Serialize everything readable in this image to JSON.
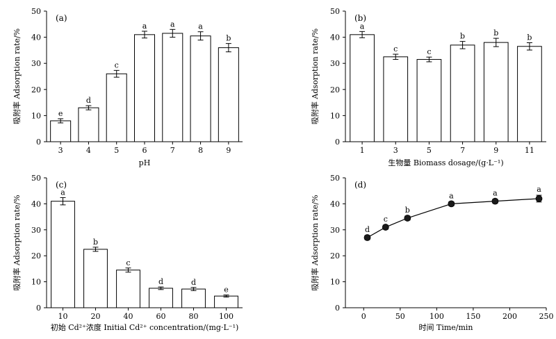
{
  "chart_data": [
    {
      "type": "bar",
      "panel_label": "(a)",
      "xlabel": "pH",
      "ylabel": "吸附率 Adsorption rate/%",
      "categories": [
        "3",
        "4",
        "5",
        "6",
        "7",
        "8",
        "9"
      ],
      "values": [
        8,
        13,
        26,
        41,
        41.5,
        40.5,
        36
      ],
      "errors": [
        0.8,
        0.8,
        1.3,
        1.3,
        1.5,
        1.6,
        1.6
      ],
      "letters": [
        "e",
        "d",
        "c",
        "a",
        "a",
        "a",
        "b"
      ],
      "ylim": [
        0,
        50
      ],
      "yticks": [
        0,
        10,
        20,
        30,
        40,
        50
      ],
      "grid": false
    },
    {
      "type": "bar",
      "panel_label": "(b)",
      "xlabel": "生物量 Biomass dosage/(g·L⁻¹)",
      "ylabel": "吸附率 Adsorption rate/%",
      "categories": [
        "1",
        "3",
        "5",
        "7",
        "9",
        "11"
      ],
      "values": [
        41,
        32.5,
        31.5,
        37,
        38,
        36.5
      ],
      "errors": [
        1.2,
        1.0,
        0.9,
        1.4,
        1.6,
        1.4
      ],
      "letters": [
        "a",
        "c",
        "c",
        "b",
        "b",
        "b"
      ],
      "ylim": [
        0,
        50
      ],
      "yticks": [
        0,
        10,
        20,
        30,
        40,
        50
      ],
      "grid": false
    },
    {
      "type": "bar",
      "panel_label": "(c)",
      "xlabel": "初始 Cd²⁺浓度 Initial Cd²⁺ concentration/(mg·L⁻¹)",
      "ylabel": "吸附率 Adsorption rate/%",
      "categories": [
        "10",
        "20",
        "40",
        "60",
        "80",
        "100"
      ],
      "values": [
        41,
        22.5,
        14.5,
        7.5,
        7.2,
        4.5
      ],
      "errors": [
        1.4,
        0.8,
        0.8,
        0.5,
        0.6,
        0.4
      ],
      "letters": [
        "a",
        "b",
        "c",
        "d",
        "d",
        "e"
      ],
      "ylim": [
        0,
        50
      ],
      "yticks": [
        0,
        10,
        20,
        30,
        40,
        50
      ],
      "grid": false
    },
    {
      "type": "line",
      "panel_label": "(d)",
      "xlabel": "时间 Time/min",
      "ylabel": "吸附率 Adsorption rate/%",
      "x": [
        5,
        30,
        60,
        120,
        180,
        240
      ],
      "y": [
        27,
        31,
        34.5,
        40,
        41,
        42
      ],
      "errors": [
        0.8,
        0.8,
        0.8,
        0.8,
        0.8,
        1.3
      ],
      "letters": [
        "d",
        "c",
        "b",
        "a",
        "a",
        "a"
      ],
      "xlim": [
        -25,
        250
      ],
      "ylim": [
        0,
        50
      ],
      "xticks": [
        0,
        50,
        100,
        150,
        200,
        250
      ],
      "yticks": [
        0,
        10,
        20,
        30,
        40,
        50
      ],
      "grid": false
    }
  ]
}
